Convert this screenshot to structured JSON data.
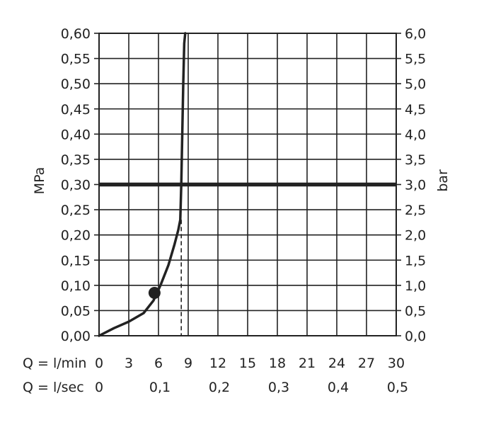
{
  "chart_data": {
    "type": "line",
    "title": "",
    "ylabel_left": "MPa",
    "ylabel_right": "bar",
    "xlabel_rows": [
      "Q = l/min",
      "Q = l/sec"
    ],
    "x_ticks_lmin": [
      "0",
      "3",
      "6",
      "9",
      "12",
      "15",
      "18",
      "21",
      "24",
      "27",
      "30"
    ],
    "x_ticks_lsec": [
      "0",
      "0,1",
      "0,2",
      "0,3",
      "0,4",
      "0,5"
    ],
    "y_ticks_left": [
      "0,00",
      "0,05",
      "0,10",
      "0,15",
      "0,20",
      "0,25",
      "0,30",
      "0,35",
      "0,40",
      "0,45",
      "0,50",
      "0,55",
      "0,60"
    ],
    "y_ticks_right": [
      "0,0",
      "0,5",
      "1,0",
      "1,5",
      "2,0",
      "2,5",
      "3,0",
      "3,5",
      "4,0",
      "4,5",
      "5,0",
      "5,5",
      "6,0"
    ],
    "xlim": [
      0,
      30
    ],
    "ylim": [
      0,
      0.6
    ],
    "x_unit": "l/min",
    "y_unit": "MPa",
    "grid": true,
    "series": [
      {
        "x": [
          0,
          1.5,
          3.0,
          4.5,
          5.5,
          6.2,
          7.0,
          7.6,
          8.0,
          8.2,
          8.3,
          8.4,
          8.5,
          8.6,
          8.7
        ],
        "y": [
          0,
          0.015,
          0.028,
          0.045,
          0.07,
          0.1,
          0.14,
          0.18,
          0.21,
          0.23,
          0.3,
          0.4,
          0.5,
          0.58,
          0.6
        ]
      }
    ],
    "marker_point": {
      "x": 5.6,
      "y": 0.085
    },
    "reference_hline": {
      "y": 0.3
    },
    "reference_vline": {
      "x": 8.3,
      "y_top": 0.23
    },
    "colors": {
      "line": "#222222",
      "grid": "#222222",
      "background": "#ffffff"
    }
  }
}
